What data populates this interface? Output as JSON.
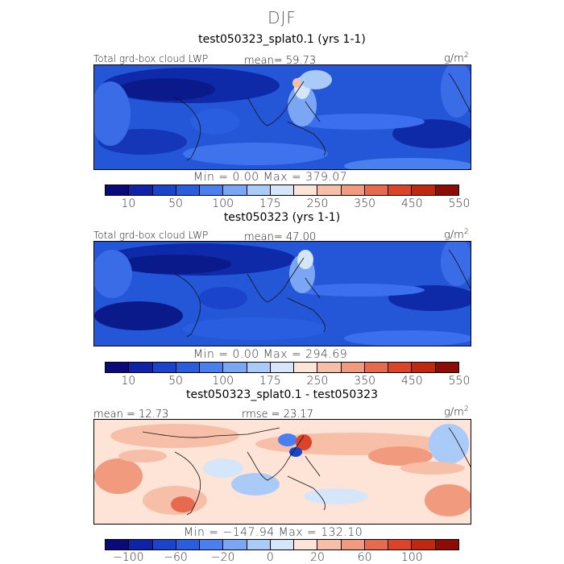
{
  "figure": {
    "title": "DJF"
  },
  "panels": [
    {
      "title": "test050323_splat0.1 (yrs 1-1)",
      "left_label": "Total grd-box cloud LWP",
      "center_label": "mean=  59.73",
      "units": "g/m",
      "units_exp": "2",
      "minmax": "Min =    0.00 Max = 379.07",
      "tick_labels": [
        "10",
        "50",
        "100",
        "175",
        "250",
        "350",
        "450",
        "550"
      ],
      "colors": [
        "#0a0a7a",
        "#1023a8",
        "#1a44cc",
        "#2a5ee0",
        "#4a7ff0",
        "#7aa6f4",
        "#aacbf7",
        "#d6e6fa",
        "#fde4d6",
        "#f8bfa8",
        "#f19a7e",
        "#e86a4e",
        "#db4428",
        "#c02812",
        "#8e0c06"
      ]
    },
    {
      "title": "test050323 (yrs 1-1)",
      "left_label": "Total grd-box cloud LWP",
      "center_label": "mean=  47.00",
      "units": "g/m",
      "units_exp": "2",
      "minmax": "Min =    0.00 Max = 294.69",
      "tick_labels": [
        "10",
        "50",
        "100",
        "175",
        "250",
        "350",
        "450",
        "550"
      ],
      "colors": [
        "#0a0a7a",
        "#1023a8",
        "#1a44cc",
        "#2a5ee0",
        "#4a7ff0",
        "#7aa6f4",
        "#aacbf7",
        "#d6e6fa",
        "#fde4d6",
        "#f8bfa8",
        "#f19a7e",
        "#e86a4e",
        "#db4428",
        "#c02812",
        "#8e0c06"
      ]
    },
    {
      "title": "test050323_splat0.1 - test050323",
      "left_label": "mean =  12.73",
      "center_label": "rmse =  23.17",
      "units": "g/m",
      "units_exp": "2",
      "minmax": "Min = −147.94 Max = 132.10",
      "tick_labels": [
        "−100",
        "−60",
        "−20",
        "0",
        "20",
        "60",
        "100"
      ],
      "colors": [
        "#0a0a7a",
        "#1023a8",
        "#1a44cc",
        "#2a5ee0",
        "#4a7ff0",
        "#7aa6f4",
        "#aacbf7",
        "#d6e6fa",
        "#fde4d6",
        "#f8bfa8",
        "#f19a7e",
        "#e86a4e",
        "#db4428",
        "#c02812",
        "#8e0c06"
      ]
    }
  ]
}
